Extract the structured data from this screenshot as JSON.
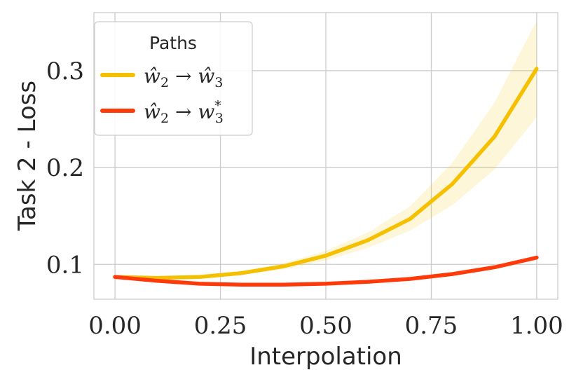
{
  "chart_data": {
    "type": "line",
    "xlabel": "Interpolation",
    "ylabel": "Task 2 - Loss",
    "xlim": [
      -0.05,
      1.05
    ],
    "ylim": [
      0.064,
      0.36
    ],
    "grid": true,
    "x_ticks": [
      0.0,
      0.25,
      0.5,
      0.75,
      1.0
    ],
    "x_tick_labels": [
      "0.00",
      "0.25",
      "0.50",
      "0.75",
      "1.00"
    ],
    "y_ticks": [
      0.1,
      0.2,
      0.3
    ],
    "y_tick_labels": [
      "0.1",
      "0.2",
      "0.3"
    ],
    "legend": {
      "title": "Paths",
      "placement": "top-left"
    },
    "x": [
      0.0,
      0.1,
      0.2,
      0.3,
      0.4,
      0.5,
      0.6,
      0.7,
      0.8,
      0.9,
      1.0
    ],
    "series": [
      {
        "name": "ŵ2 → ŵ3",
        "color": "#f5c000",
        "values": [
          0.087,
          0.086,
          0.087,
          0.091,
          0.098,
          0.109,
          0.125,
          0.147,
          0.183,
          0.232,
          0.302
        ],
        "band_lower": [
          0.087,
          0.086,
          0.086,
          0.089,
          0.095,
          0.104,
          0.117,
          0.135,
          0.161,
          0.198,
          0.252
        ],
        "band_upper": [
          0.087,
          0.087,
          0.088,
          0.093,
          0.101,
          0.114,
          0.133,
          0.16,
          0.205,
          0.267,
          0.352
        ]
      },
      {
        "name": "ŵ2 → w3*",
        "color": "#ff3a0a",
        "values": [
          0.087,
          0.083,
          0.08,
          0.079,
          0.079,
          0.08,
          0.082,
          0.085,
          0.09,
          0.097,
          0.107
        ],
        "band_lower": [
          0.087,
          0.083,
          0.08,
          0.079,
          0.079,
          0.08,
          0.082,
          0.085,
          0.089,
          0.096,
          0.105
        ],
        "band_upper": [
          0.087,
          0.083,
          0.081,
          0.08,
          0.08,
          0.081,
          0.083,
          0.086,
          0.091,
          0.098,
          0.109
        ]
      }
    ]
  }
}
